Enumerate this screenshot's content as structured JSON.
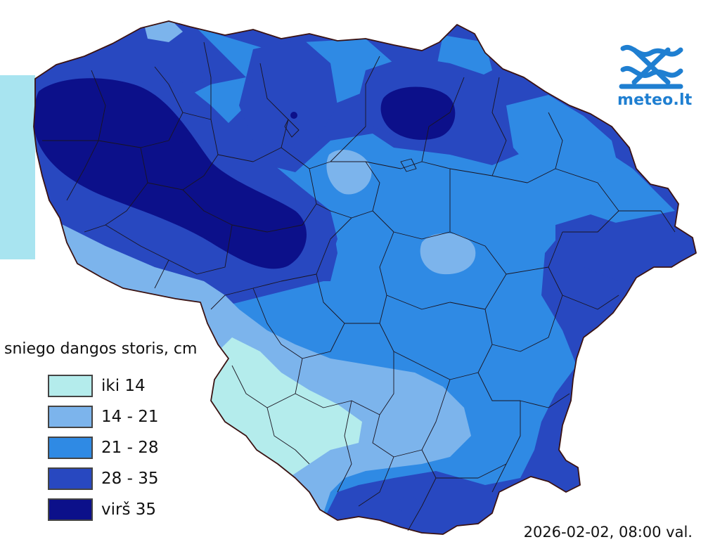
{
  "legend": {
    "title": "sniego dangos storis, cm",
    "classes": [
      {
        "label": "iki 14",
        "color": "#b4ecec"
      },
      {
        "label": "14 - 21",
        "color": "#7cb4ec"
      },
      {
        "label": "21 - 28",
        "color": "#2f8ae4"
      },
      {
        "label": "28 - 35",
        "color": "#2848c0"
      },
      {
        "label": "virš 35",
        "color": "#0c108a"
      }
    ]
  },
  "logo": {
    "text": "meteo.lt",
    "icon": "meteo-wave-logo-icon",
    "color": "#1f7fd1"
  },
  "timestamp": "2026-02-02, 08:00 val.",
  "map": {
    "sea_color": "#a8e4f0",
    "boundary_color": "#2a1010"
  }
}
